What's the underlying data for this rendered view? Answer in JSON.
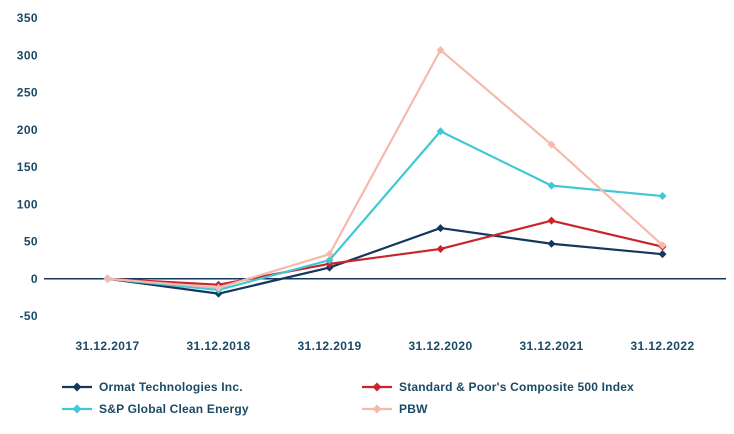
{
  "chart_data": {
    "type": "line",
    "categories": [
      "31.12.2017",
      "31.12.2018",
      "31.12.2019",
      "31.12.2020",
      "31.12.2021",
      "31.12.2022"
    ],
    "series": [
      {
        "name": "Ormat Technologies Inc.",
        "color": "#16375c",
        "values": [
          0,
          -20,
          15,
          68,
          47,
          33
        ]
      },
      {
        "name": "Standard & Poor's Composite 500 Index",
        "color": "#c8252c",
        "values": [
          0,
          -8,
          20,
          40,
          78,
          43
        ]
      },
      {
        "name": "S&P Global Clean Energy",
        "color": "#40c8d4",
        "values": [
          0,
          -15,
          25,
          198,
          125,
          111
        ]
      },
      {
        "name": "PBW",
        "color": "#f6b9ad",
        "values": [
          0,
          -12,
          33,
          307,
          180,
          45
        ]
      }
    ],
    "title": "",
    "xlabel": "",
    "ylabel": "",
    "ylim": [
      -50,
      350
    ],
    "ytick_step": 50,
    "ytick_labels": [
      "-50",
      "0",
      "50",
      "100",
      "150",
      "200",
      "250",
      "300",
      "350"
    ],
    "grid": false,
    "legend_position": "bottom",
    "legend_order": [
      0,
      1,
      2,
      3
    ]
  },
  "styles": {
    "axis_label_color": "#1a4a66",
    "zero_line_color": "#16375c",
    "background": "#ffffff"
  }
}
